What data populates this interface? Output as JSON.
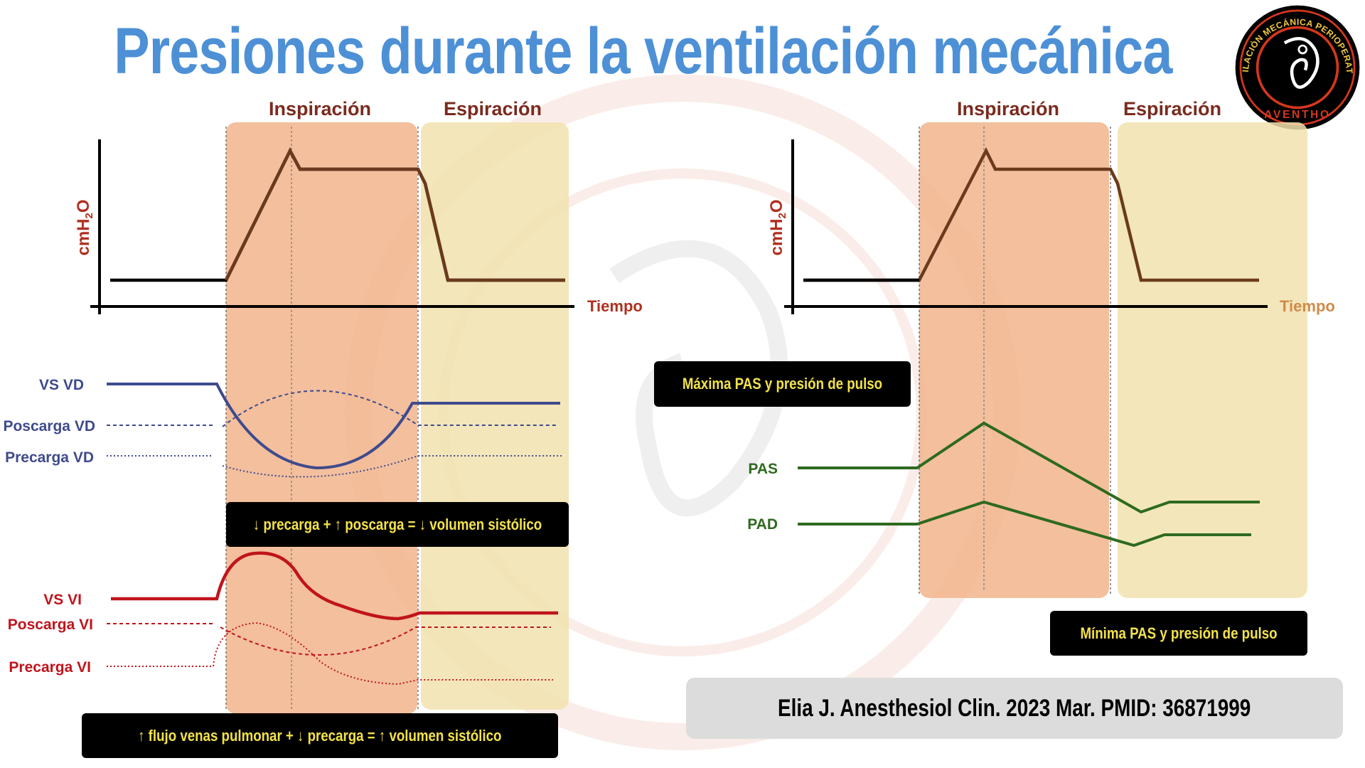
{
  "title": "Presiones durante la ventilación mecánica",
  "logo": {
    "ring_text": "VENTILACIÓN MECÁNICA PERIOPERATORIA",
    "bottom_text": "AVENTHO"
  },
  "left_panel": {
    "phase_inspiration": "Inspiración",
    "phase_expiration": "Espiración",
    "y_axis_label": "cmH",
    "y_axis_sub": "2",
    "y_axis_tail": "O",
    "x_axis_label": "Tiempo",
    "labels": {
      "vs_vd": "VS VD",
      "poscarga_vd": "Poscarga VD",
      "precarga_vd": "Precarga VD",
      "vs_vi": "VS VI",
      "poscarga_vi": "Poscarga VI",
      "precarga_vi": "Precarga VI"
    },
    "box_right": "↓ precarga +  ↑ poscarga = ↓ volumen sistólico",
    "box_left": "↑ flujo venas pulmonar  + ↓ precarga =  ↑  volumen sistólico"
  },
  "right_panel": {
    "phase_inspiration": "Inspiración",
    "phase_expiration": "Espiración",
    "y_axis_label": "cmH",
    "y_axis_sub": "2",
    "y_axis_tail": "O",
    "x_axis_label": "Tiempo",
    "labels": {
      "pas": "PAS",
      "pad": "PAD"
    },
    "box_max": "Máxima PAS y presión de pulso",
    "box_min": "Mínima PAS y presión de pulso"
  },
  "citation": "Elia J. Anesthesiol Clin. 2023 Mar. PMID: 36871999",
  "colors": {
    "title": "#4d90d6",
    "inspiration_band": "#f1b48c",
    "expiration_band": "#f1e2ae",
    "phase_text": "#7a2b1e",
    "pressure_curve": "#6b3a1e",
    "vd": "#3f4a8c",
    "vi": "#c0141c",
    "arterial": "#2e6a1e",
    "box_text": "#f2e24a"
  }
}
